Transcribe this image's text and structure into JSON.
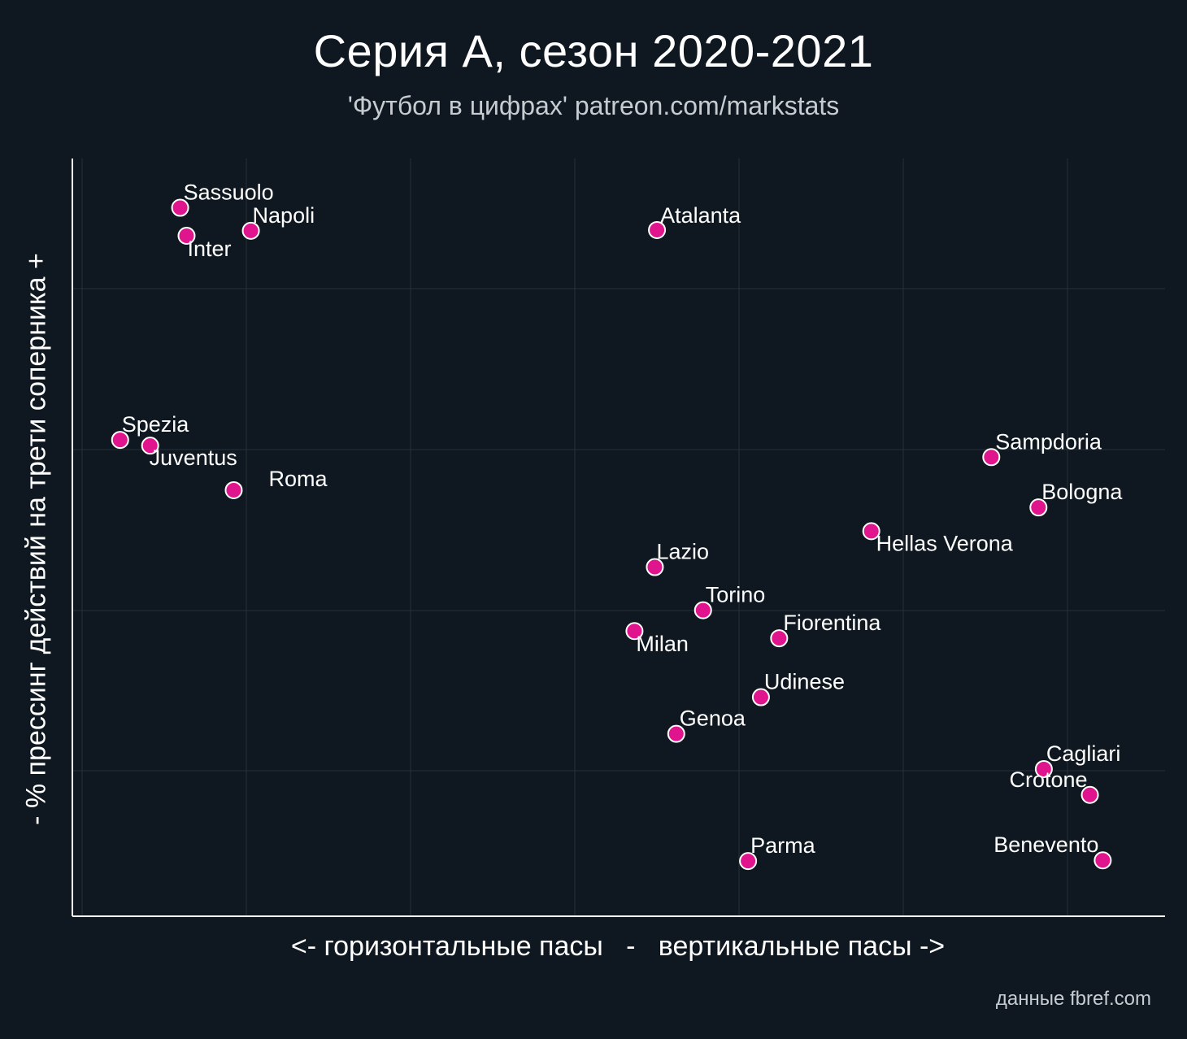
{
  "colors": {
    "background": "#0f1820",
    "point_fill": "#e0148c",
    "point_stroke": "#ffffff",
    "grid": "#26313a",
    "axis": "#ffffff",
    "text": "#ffffff",
    "subtext": "#c7ccd1"
  },
  "title": "Серия А, сезон 2020-2021",
  "subtitle": "'Футбол в цифрах' patreon.com/markstats",
  "source": "данные fbref.com",
  "chart_data": {
    "type": "scatter",
    "title": "Серия А, сезон 2020-2021",
    "xlabel": "<- горизонтальные пасы   -   вертикальные пасы ->",
    "ylabel": "- % прессинг действий на трети соперника +",
    "xlim": [
      0,
      100
    ],
    "ylim": [
      0,
      100
    ],
    "grid": true,
    "tick_labels_shown": false,
    "points": [
      {
        "label": "Sassuolo",
        "x": 9.3,
        "y": 95.3
      },
      {
        "label": "Napoli",
        "x": 15.9,
        "y": 92.1
      },
      {
        "label": "Inter",
        "x": 9.9,
        "y": 91.4
      },
      {
        "label": "Atalanta",
        "x": 53.8,
        "y": 92.2
      },
      {
        "label": "Spezia",
        "x": 3.7,
        "y": 63.0
      },
      {
        "label": "Juventus",
        "x": 6.5,
        "y": 62.2
      },
      {
        "label": "Roma",
        "x": 14.3,
        "y": 56.0
      },
      {
        "label": "Sampdoria",
        "x": 85.0,
        "y": 60.6
      },
      {
        "label": "Bologna",
        "x": 89.4,
        "y": 53.6
      },
      {
        "label": "Hellas Verona",
        "x": 73.8,
        "y": 50.3
      },
      {
        "label": "Lazio",
        "x": 53.6,
        "y": 45.3
      },
      {
        "label": "Torino",
        "x": 58.1,
        "y": 39.3
      },
      {
        "label": "Milan",
        "x": 51.7,
        "y": 36.4
      },
      {
        "label": "Fiorentina",
        "x": 65.2,
        "y": 35.4
      },
      {
        "label": "Udinese",
        "x": 63.5,
        "y": 27.2
      },
      {
        "label": "Genoa",
        "x": 55.6,
        "y": 22.1
      },
      {
        "label": "Cagliari",
        "x": 89.9,
        "y": 17.2
      },
      {
        "label": "Crotone",
        "x": 94.2,
        "y": 13.6
      },
      {
        "label": "Parma",
        "x": 62.3,
        "y": 4.4
      },
      {
        "label": "Benevento",
        "x": 95.4,
        "y": 4.5
      }
    ]
  }
}
